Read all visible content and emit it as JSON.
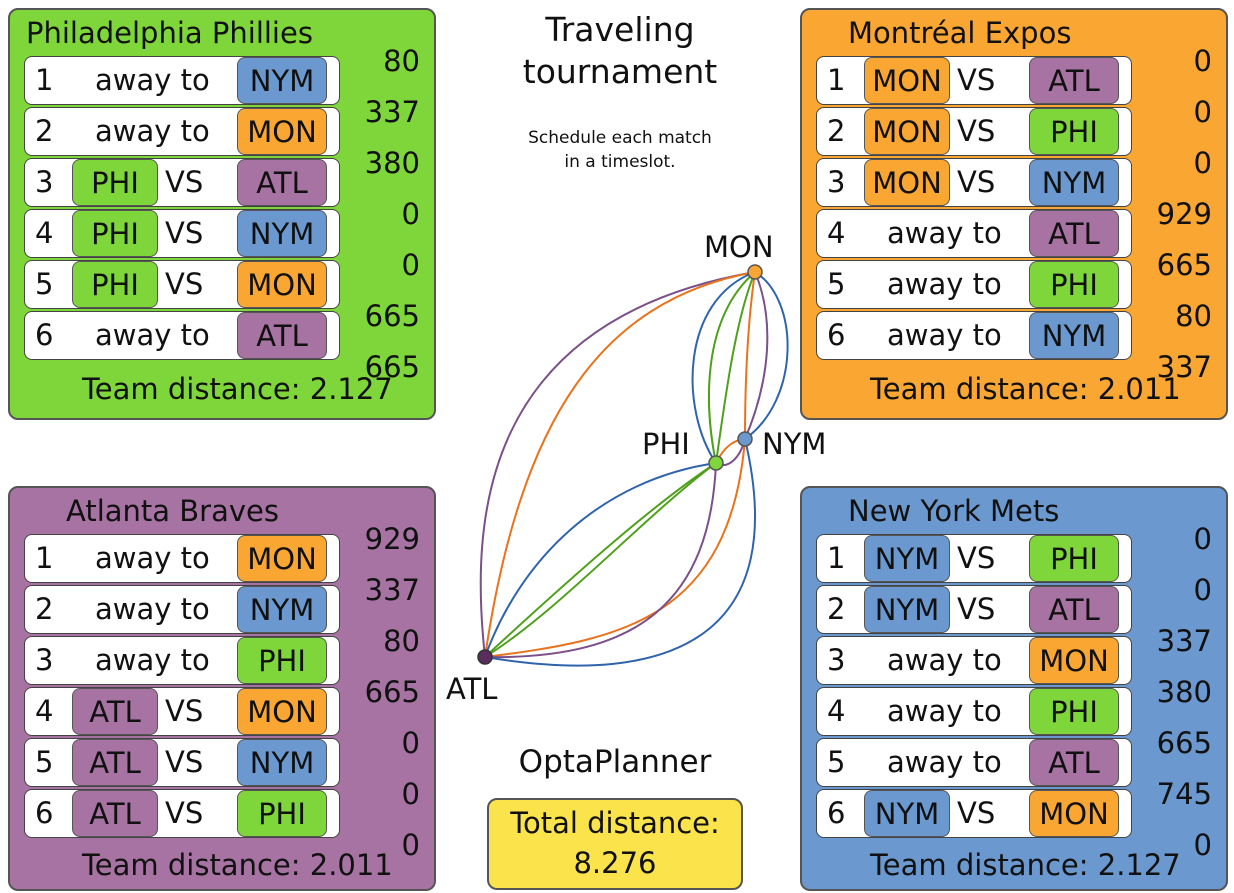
{
  "title_line1": "Traveling",
  "title_line2": "tournament",
  "subtitle_line1": "Schedule each match",
  "subtitle_line2": "in a timeslot.",
  "brand": "OptaPlanner",
  "total_label": "Total distance:",
  "total_value": "8.276",
  "colors": {
    "PHI": "#7fd63b",
    "MON": "#f9a632",
    "NYM": "#6b98cf",
    "ATL": "#a773a3",
    "total": "#fbe44b"
  },
  "graph": {
    "nodes": [
      "MON",
      "PHI",
      "NYM",
      "ATL"
    ]
  },
  "teams": [
    {
      "name": "Philadelphia Phillies",
      "code": "PHI",
      "distance_label": "Team distance: 2.127",
      "values": [
        "80",
        "337",
        "380",
        "0",
        "0",
        "665",
        "665"
      ],
      "rows": [
        {
          "n": "1",
          "type": "away",
          "text": "away to",
          "opp": "NYM"
        },
        {
          "n": "2",
          "type": "away",
          "text": "away to",
          "opp": "MON"
        },
        {
          "n": "3",
          "type": "home",
          "home": "PHI",
          "vs": "VS",
          "opp": "ATL"
        },
        {
          "n": "4",
          "type": "home",
          "home": "PHI",
          "vs": "VS",
          "opp": "NYM"
        },
        {
          "n": "5",
          "type": "home",
          "home": "PHI",
          "vs": "VS",
          "opp": "MON"
        },
        {
          "n": "6",
          "type": "away",
          "text": "away to",
          "opp": "ATL"
        }
      ]
    },
    {
      "name": "Montréal Expos",
      "code": "MON",
      "distance_label": "Team distance: 2.011",
      "values": [
        "0",
        "0",
        "0",
        "929",
        "665",
        "80",
        "337"
      ],
      "rows": [
        {
          "n": "1",
          "type": "home",
          "home": "MON",
          "vs": "VS",
          "opp": "ATL"
        },
        {
          "n": "2",
          "type": "home",
          "home": "MON",
          "vs": "VS",
          "opp": "PHI"
        },
        {
          "n": "3",
          "type": "home",
          "home": "MON",
          "vs": "VS",
          "opp": "NYM"
        },
        {
          "n": "4",
          "type": "away",
          "text": "away to",
          "opp": "ATL"
        },
        {
          "n": "5",
          "type": "away",
          "text": "away to",
          "opp": "PHI"
        },
        {
          "n": "6",
          "type": "away",
          "text": "away to",
          "opp": "NYM"
        }
      ]
    },
    {
      "name": "Atlanta Braves",
      "code": "ATL",
      "distance_label": "Team distance: 2.011",
      "values": [
        "929",
        "337",
        "80",
        "665",
        "0",
        "0",
        "0"
      ],
      "rows": [
        {
          "n": "1",
          "type": "away",
          "text": "away to",
          "opp": "MON"
        },
        {
          "n": "2",
          "type": "away",
          "text": "away to",
          "opp": "NYM"
        },
        {
          "n": "3",
          "type": "away",
          "text": "away to",
          "opp": "PHI"
        },
        {
          "n": "4",
          "type": "home",
          "home": "ATL",
          "vs": "VS",
          "opp": "MON"
        },
        {
          "n": "5",
          "type": "home",
          "home": "ATL",
          "vs": "VS",
          "opp": "NYM"
        },
        {
          "n": "6",
          "type": "home",
          "home": "ATL",
          "vs": "VS",
          "opp": "PHI"
        }
      ]
    },
    {
      "name": "New York Mets",
      "code": "NYM",
      "distance_label": "Team distance: 2.127",
      "values": [
        "0",
        "0",
        "337",
        "380",
        "665",
        "745",
        "0"
      ],
      "rows": [
        {
          "n": "1",
          "type": "home",
          "home": "NYM",
          "vs": "VS",
          "opp": "PHI"
        },
        {
          "n": "2",
          "type": "home",
          "home": "NYM",
          "vs": "VS",
          "opp": "ATL"
        },
        {
          "n": "3",
          "type": "away",
          "text": "away to",
          "opp": "MON"
        },
        {
          "n": "4",
          "type": "away",
          "text": "away to",
          "opp": "PHI"
        },
        {
          "n": "5",
          "type": "away",
          "text": "away to",
          "opp": "ATL"
        },
        {
          "n": "6",
          "type": "home",
          "home": "NYM",
          "vs": "VS",
          "opp": "MON"
        }
      ]
    }
  ]
}
